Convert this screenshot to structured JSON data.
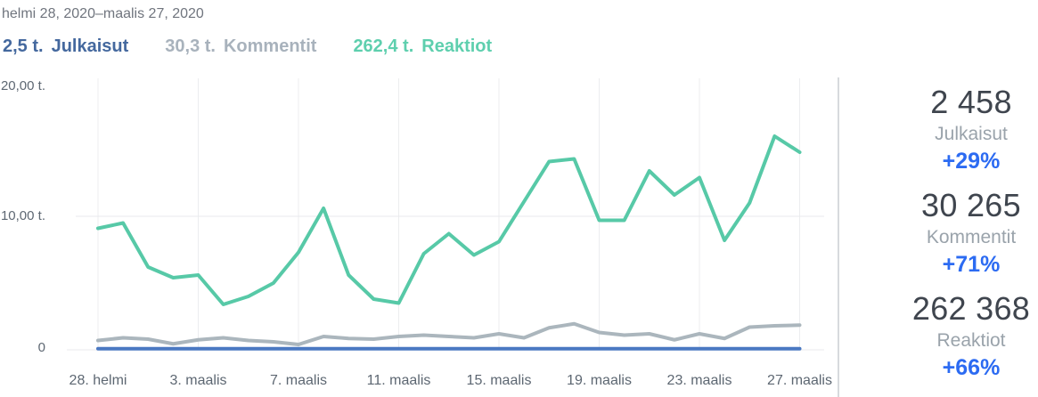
{
  "header": {
    "date_range": "helmi 28, 2020–maalis 27, 2020",
    "legend": [
      {
        "value": "2,5 t.",
        "label": "Julkaisut"
      },
      {
        "value": "30,3 t.",
        "label": "Kommentit"
      },
      {
        "value": "262,4 t.",
        "label": "Reaktiot"
      }
    ]
  },
  "chart_data": {
    "type": "line",
    "x_range": "daily points, helmi 28 2020 – maalis 27 2020 (29 days)",
    "x_tick_labels": [
      "28. helmi",
      "3. maalis",
      "7. maalis",
      "11. maalis",
      "15. maalis",
      "19. maalis",
      "23. maalis",
      "27. maalis"
    ],
    "x_tick_day_indices": [
      0,
      4,
      8,
      12,
      16,
      20,
      24,
      28
    ],
    "y_tick_labels": [
      "20,00 t.",
      "10,00 t.",
      "0"
    ],
    "y_unit": "thousands (t.)",
    "ylim": [
      0,
      20
    ],
    "grid": true,
    "legend_position": "top-left",
    "series": [
      {
        "name": "Julkaisut",
        "color": "#4a78c2",
        "values": [
          0.085,
          0.085,
          0.085,
          0.085,
          0.085,
          0.085,
          0.085,
          0.085,
          0.085,
          0.085,
          0.085,
          0.085,
          0.085,
          0.085,
          0.085,
          0.085,
          0.085,
          0.085,
          0.085,
          0.085,
          0.085,
          0.085,
          0.085,
          0.085,
          0.085,
          0.085,
          0.085,
          0.085,
          0.085
        ]
      },
      {
        "name": "Kommentit",
        "color": "#abb6bd",
        "values": [
          0.7,
          0.9,
          0.8,
          0.45,
          0.75,
          0.9,
          0.7,
          0.6,
          0.4,
          1.0,
          0.85,
          0.8,
          1.0,
          1.1,
          1.0,
          0.9,
          1.2,
          0.9,
          1.65,
          1.95,
          1.3,
          1.1,
          1.2,
          0.75,
          1.2,
          0.85,
          1.7,
          1.8,
          1.85
        ]
      },
      {
        "name": "Reaktiot",
        "color": "#57c9a7",
        "values": [
          9.1,
          9.5,
          6.2,
          5.4,
          5.6,
          3.4,
          4.0,
          5.0,
          7.3,
          10.6,
          5.6,
          3.8,
          3.5,
          7.2,
          8.7,
          7.1,
          8.1,
          11.1,
          14.1,
          14.3,
          9.7,
          9.7,
          13.4,
          11.6,
          12.9,
          8.2,
          11.0,
          16.0,
          14.8
        ]
      }
    ]
  },
  "stats": [
    {
      "value": "2 458",
      "label": "Julkaisut",
      "change": "+29%"
    },
    {
      "value": "30 265",
      "label": "Kommentit",
      "change": "+71%"
    },
    {
      "value": "262 368",
      "label": "Reaktiot",
      "change": "+66%"
    }
  ],
  "colors": {
    "legend_julkaisut": "#44689e",
    "legend_kommentit": "#a8b2bc",
    "legend_reaktiot": "#5ecfae",
    "stat_change": "#2c6bf2",
    "line_julkaisut": "#4a78c2",
    "line_kommentit": "#abb6bd",
    "line_reaktiot": "#57c9a7"
  }
}
